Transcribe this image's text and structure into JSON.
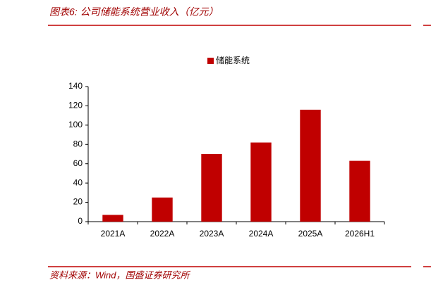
{
  "header": {
    "title": "图表6:  公司储能系统营业收入（亿元）"
  },
  "chart_data": {
    "type": "bar",
    "categories": [
      "2021A",
      "2022A",
      "2023A",
      "2024A",
      "2025A",
      "2026H1"
    ],
    "series": [
      {
        "name": "储能系统",
        "color": "#c00000",
        "values": [
          7,
          25,
          70,
          82,
          116,
          63
        ]
      }
    ],
    "ylim": [
      0,
      140
    ],
    "yticks": [
      0,
      20,
      40,
      60,
      80,
      100,
      120,
      140
    ],
    "legend": "top"
  },
  "footer": {
    "source": "资料来源：Wind，国盛证券研究所"
  }
}
